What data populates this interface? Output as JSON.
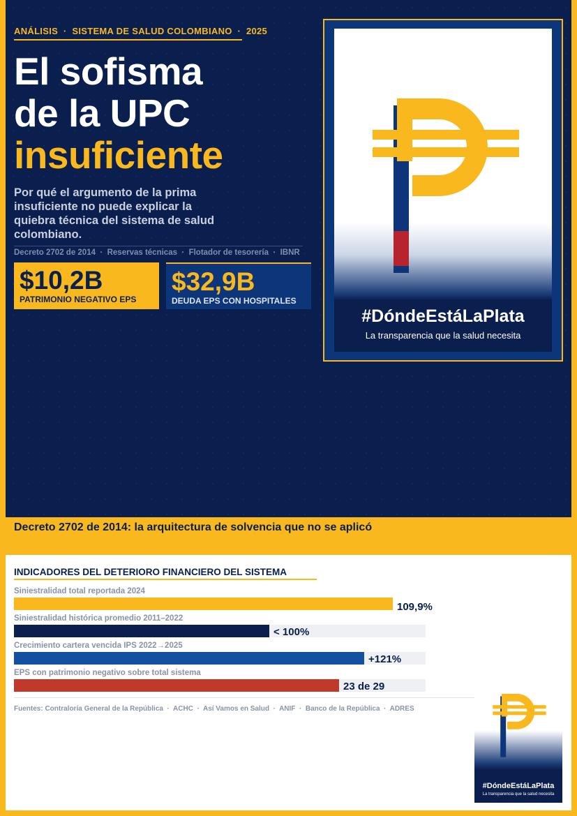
{
  "header": {
    "kicker": "ANÁLISIS  ·  SISTEMA DE SALUD COLOMBIANO  ·  2025",
    "title_line1": "El sofisma",
    "title_line2": "de la UPC",
    "title_highlight": "insuficiente",
    "subtitle": "Por qué el argumento de la prima insuficiente no puede explicar la quiebra técnica del sistema de salud colombiano.",
    "tags": "Decreto 2702 de 2014  ·  Reservas técnicas  ·  Flotador de tesorería  ·  IBNR"
  },
  "stats": [
    {
      "value": "$10,2B",
      "label": "PATRIMONIO NEGATIVO EPS"
    },
    {
      "value": "$32,9B",
      "label": "DEUDA EPS CON HOSPITALES"
    }
  ],
  "poster": {
    "hashtag": "#DóndeEstáLaPlata",
    "tagline": "La transparencia que la salud necesita"
  },
  "band_title": "Decreto 2702 de 2014: la arquitectura de solvencia que no se aplicó",
  "indicators": {
    "title": "INDICADORES DEL DETERIORO FINANCIERO DEL SISTEMA",
    "rows": [
      {
        "label": "Siniestralidad total reportada 2024",
        "value": "109,9%",
        "fill": 0.92,
        "color": "#f9b91e"
      },
      {
        "label": "Siniestralidad histórica promedio 2011–2022",
        "value": "< 100%",
        "fill": 0.62,
        "color": "#0a1f4e"
      },
      {
        "label": "Crecimiento cartera vencida IPS 2022→2025",
        "value": "+121%",
        "fill": 0.85,
        "color": "#1351a0"
      },
      {
        "label": "EPS con patrimonio negativo sobre total sistema",
        "value": "23 de 29",
        "fill": 0.79,
        "color": "#c0392b"
      }
    ],
    "sources": "Fuentes: Contraloría General de la República  ·  ACHC  ·  Así Vamos en Salud  ·  ANIF  ·  Banco de la República  ·  ADRES"
  }
}
